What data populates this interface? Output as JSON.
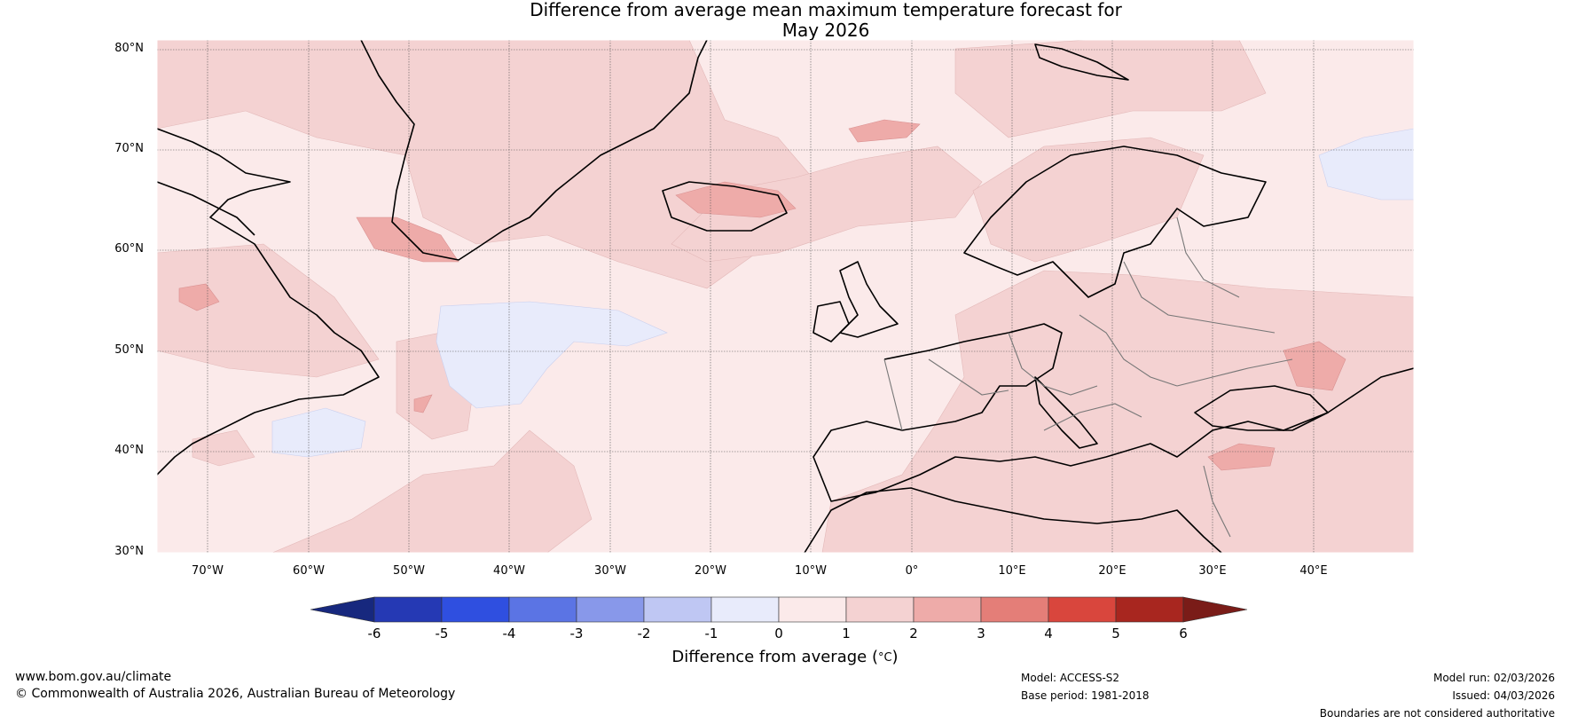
{
  "title": {
    "line1": "Difference from average mean maximum temperature forecast for",
    "line2": "May 2026"
  },
  "map": {
    "latitude_labels": [
      "80°N",
      "70°N",
      "60°N",
      "50°N",
      "40°N",
      "30°N"
    ],
    "longitude_labels": [
      "70°W",
      "60°W",
      "50°W",
      "40°W",
      "30°W",
      "20°W",
      "10°W",
      "0°",
      "10°E",
      "20°E",
      "30°E",
      "40°E"
    ],
    "region": "North Atlantic and Europe"
  },
  "colorbar": {
    "label": "Difference from average (°C)",
    "label_prefix": "Difference from average (",
    "label_unit": "°C",
    "label_suffix": ")",
    "ticks": [
      "-6",
      "-5",
      "-4",
      "-3",
      "-2",
      "-1",
      "0",
      "1",
      "2",
      "3",
      "4",
      "5",
      "6"
    ],
    "colors": [
      "#17287e",
      "#2539b4",
      "#2f4fe0",
      "#5b74e4",
      "#8898ea",
      "#bfc7f3",
      "#e8ebfb",
      "#fbeaea",
      "#f4d2d2",
      "#eeaba9",
      "#e47e78",
      "#d9463d",
      "#a8261f",
      "#7a1c18"
    ]
  },
  "footer": {
    "website": "www.bom.gov.au/climate",
    "copyright": "© Commonwealth of Australia 2026, Australian Bureau of Meteorology",
    "model": "Model: ACCESS-S2",
    "base_period": "Base period: 1981-2018",
    "model_run": "Model run: 02/03/2026",
    "issued": "Issued: 04/03/2026",
    "disclaimer": "Boundaries are not considered authoritative"
  }
}
